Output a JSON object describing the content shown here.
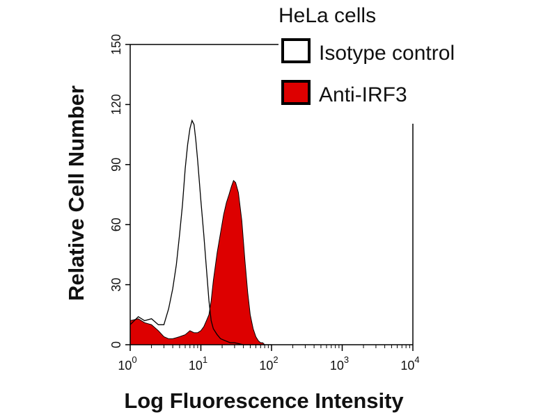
{
  "chart_data": {
    "type": "area",
    "title": "HeLa cells",
    "xlabel": "Log Fluorescence Intensity",
    "ylabel": "Relative Cell Number",
    "x_scale": "log",
    "xlim": [
      1,
      10000
    ],
    "ylim": [
      0,
      150
    ],
    "x_ticks": [
      {
        "base": "10",
        "exp": "0"
      },
      {
        "base": "10",
        "exp": "1"
      },
      {
        "base": "10",
        "exp": "2"
      },
      {
        "base": "10",
        "exp": "3"
      },
      {
        "base": "10",
        "exp": "4"
      }
    ],
    "y_ticks": [
      "0",
      "30",
      "60",
      "90",
      "120",
      "150"
    ],
    "legend_position": "top-right",
    "grid": false,
    "series": [
      {
        "name": "Isotype control",
        "color": "#000000",
        "fill": "none",
        "x": [
          1,
          1.3,
          1.6,
          2,
          2.5,
          3,
          3.5,
          4,
          4.5,
          5,
          5.5,
          6,
          6.5,
          7,
          7.5,
          8,
          8.5,
          9,
          10,
          11,
          12,
          13,
          14,
          15,
          17,
          19,
          22,
          26,
          30,
          40,
          60,
          100
        ],
        "values": [
          10,
          14,
          12,
          13,
          10,
          10,
          18,
          28,
          40,
          55,
          70,
          88,
          100,
          108,
          112,
          110,
          102,
          92,
          72,
          55,
          38,
          22,
          12,
          8,
          5,
          3,
          2,
          1,
          1,
          0,
          0,
          0
        ]
      },
      {
        "name": "Anti-IRF3",
        "color": "#dd0000",
        "fill": "#dd0000",
        "x": [
          1,
          1.3,
          1.6,
          2,
          2.5,
          3,
          3.5,
          4,
          5,
          6,
          7,
          8,
          9,
          10,
          11,
          12,
          13,
          14,
          15,
          17,
          19,
          21,
          23,
          25,
          27,
          29,
          31,
          34,
          38,
          42,
          46,
          50,
          55,
          60,
          65,
          70,
          75,
          80,
          100
        ],
        "values": [
          12,
          13,
          11,
          10,
          7,
          4,
          3,
          3,
          4,
          5,
          7,
          6,
          6,
          7,
          9,
          12,
          15,
          22,
          32,
          46,
          56,
          65,
          71,
          75,
          79,
          82,
          81,
          76,
          62,
          42,
          26,
          15,
          8,
          4,
          2,
          1,
          1,
          0,
          0
        ]
      }
    ]
  }
}
